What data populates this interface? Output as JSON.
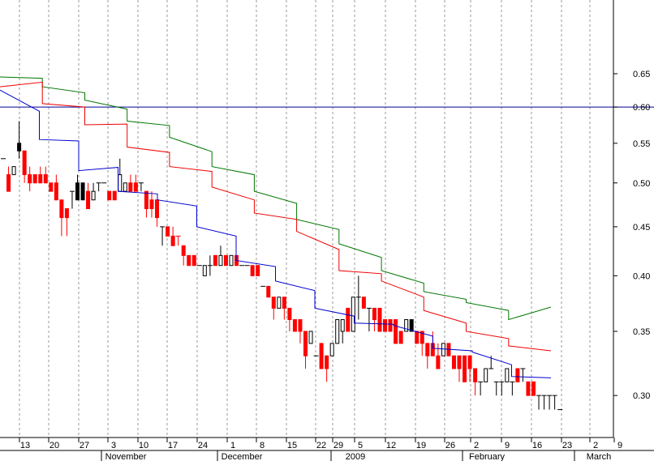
{
  "chart_data": {
    "type": "candlestick",
    "y_scale": "log",
    "ylim": [
      0.27,
      0.68
    ],
    "y_ticks": [
      "0.30",
      "0.35",
      "0.40",
      "0.45",
      "0.50",
      "0.55",
      "0.60",
      "0.65"
    ],
    "x_day_labels": [
      "13",
      "20",
      "27",
      "3",
      "10",
      "17",
      "24",
      "1",
      "8",
      "15",
      "22",
      "29",
      "5",
      "12",
      "19",
      "26",
      "2",
      "9",
      "16",
      "23",
      "2",
      "9"
    ],
    "month_labels": [
      "November",
      "December",
      "2009",
      "February",
      "March"
    ],
    "horizontal_line": 0.6,
    "colors": {
      "up": "#ffffff",
      "down": "#ff0000",
      "highlight": "#000000",
      "ma_short": "#0000cc",
      "ma_mid": "#ee0000",
      "ma_long": "#007700",
      "hline": "#000099",
      "grid": "#999999"
    },
    "candles": [
      [
        0.53,
        0.53,
        0.53,
        0.53,
        "flat"
      ],
      [
        0.51,
        0.52,
        0.49,
        0.49,
        "down"
      ],
      [
        0.51,
        0.52,
        0.51,
        0.52,
        "up"
      ],
      [
        0.55,
        0.58,
        0.53,
        0.54,
        "black"
      ],
      [
        0.54,
        0.54,
        0.5,
        0.51,
        "down"
      ],
      [
        0.51,
        0.52,
        0.49,
        0.5,
        "down"
      ],
      [
        0.51,
        0.51,
        0.5,
        0.5,
        "down"
      ],
      [
        0.51,
        0.52,
        0.5,
        0.5,
        "down"
      ],
      [
        0.51,
        0.52,
        0.5,
        0.5,
        "down"
      ],
      [
        0.5,
        0.5,
        0.49,
        0.49,
        "down"
      ],
      [
        0.5,
        0.51,
        0.48,
        0.48,
        "down"
      ],
      [
        0.48,
        0.48,
        0.44,
        0.46,
        "down"
      ],
      [
        0.47,
        0.47,
        0.44,
        0.46,
        "down"
      ],
      [
        0.49,
        0.49,
        0.47,
        0.49,
        "flat"
      ],
      [
        0.5,
        0.51,
        0.48,
        0.48,
        "black"
      ],
      [
        0.5,
        0.5,
        0.48,
        0.48,
        "black"
      ],
      [
        0.49,
        0.5,
        0.47,
        0.47,
        "down"
      ],
      [
        0.48,
        0.5,
        0.48,
        0.49,
        "up"
      ],
      [
        0.5,
        0.5,
        0.49,
        0.5,
        "up"
      ],
      [
        0.5,
        0.5,
        0.5,
        0.5,
        "flat"
      ],
      [
        0.49,
        0.49,
        0.48,
        0.48,
        "down"
      ],
      [
        0.49,
        0.49,
        0.48,
        0.48,
        "down"
      ],
      [
        0.49,
        0.53,
        0.49,
        0.51,
        "up"
      ],
      [
        0.49,
        0.5,
        0.49,
        0.5,
        "up"
      ],
      [
        0.5,
        0.51,
        0.49,
        0.49,
        "down"
      ],
      [
        0.5,
        0.51,
        0.49,
        0.49,
        "down"
      ],
      [
        0.5,
        0.5,
        0.49,
        0.49,
        "flat"
      ],
      [
        0.49,
        0.49,
        0.46,
        0.47,
        "down"
      ],
      [
        0.48,
        0.49,
        0.46,
        0.47,
        "down"
      ],
      [
        0.48,
        0.48,
        0.45,
        0.46,
        "down"
      ],
      [
        0.45,
        0.45,
        0.43,
        0.44,
        "flat"
      ],
      [
        0.45,
        0.45,
        0.44,
        0.44,
        "down"
      ],
      [
        0.44,
        0.45,
        0.43,
        0.43,
        "down"
      ],
      [
        0.44,
        0.44,
        0.43,
        0.44,
        "down"
      ],
      [
        0.43,
        0.43,
        0.41,
        0.42,
        "down"
      ],
      [
        0.42,
        0.42,
        0.41,
        0.41,
        "down"
      ],
      [
        0.42,
        0.42,
        0.41,
        0.41,
        "down"
      ],
      [
        0.41,
        0.41,
        0.41,
        0.41,
        "flat"
      ],
      [
        0.4,
        0.41,
        0.4,
        0.41,
        "up"
      ],
      [
        0.41,
        0.42,
        0.4,
        0.41,
        "up"
      ],
      [
        0.42,
        0.42,
        0.41,
        0.41,
        "down"
      ],
      [
        0.41,
        0.43,
        0.41,
        0.42,
        "up"
      ],
      [
        0.42,
        0.42,
        0.41,
        0.41,
        "down"
      ],
      [
        0.41,
        0.42,
        0.41,
        0.42,
        "up"
      ],
      [
        0.42,
        0.42,
        0.41,
        0.41,
        "down"
      ],
      [
        0.41,
        0.41,
        0.41,
        0.41,
        "flat"
      ],
      [
        0.41,
        0.41,
        0.41,
        0.41,
        "flat"
      ],
      [
        0.41,
        0.41,
        0.4,
        0.4,
        "down"
      ],
      [
        0.41,
        0.41,
        0.4,
        0.4,
        "down"
      ],
      [
        0.39,
        0.39,
        0.39,
        0.39,
        "flat"
      ],
      [
        0.39,
        0.39,
        0.38,
        0.38,
        "down"
      ],
      [
        0.38,
        0.38,
        0.36,
        0.37,
        "down"
      ],
      [
        0.37,
        0.38,
        0.37,
        0.38,
        "up"
      ],
      [
        0.38,
        0.38,
        0.36,
        0.37,
        "down"
      ],
      [
        0.37,
        0.37,
        0.35,
        0.36,
        "down"
      ],
      [
        0.36,
        0.36,
        0.35,
        0.35,
        "down"
      ],
      [
        0.36,
        0.36,
        0.34,
        0.35,
        "down"
      ],
      [
        0.35,
        0.35,
        0.32,
        0.33,
        "down"
      ],
      [
        0.34,
        0.35,
        0.34,
        0.35,
        "up"
      ],
      [
        0.33,
        0.33,
        0.33,
        0.33,
        "flat"
      ],
      [
        0.34,
        0.34,
        0.32,
        0.32,
        "down"
      ],
      [
        0.33,
        0.33,
        0.31,
        0.32,
        "down"
      ],
      [
        0.33,
        0.34,
        0.33,
        0.34,
        "up"
      ],
      [
        0.34,
        0.36,
        0.34,
        0.36,
        "up"
      ],
      [
        0.35,
        0.36,
        0.34,
        0.36,
        "up"
      ],
      [
        0.37,
        0.37,
        0.35,
        0.35,
        "down"
      ],
      [
        0.35,
        0.38,
        0.35,
        0.38,
        "up"
      ],
      [
        0.38,
        0.4,
        0.36,
        0.38,
        "up"
      ],
      [
        0.38,
        0.38,
        0.37,
        0.37,
        "down"
      ],
      [
        0.37,
        0.37,
        0.35,
        0.37,
        "up"
      ],
      [
        0.37,
        0.37,
        0.35,
        0.36,
        "down"
      ],
      [
        0.37,
        0.37,
        0.35,
        0.35,
        "down"
      ],
      [
        0.36,
        0.36,
        0.35,
        0.35,
        "down"
      ],
      [
        0.36,
        0.36,
        0.35,
        0.35,
        "down"
      ],
      [
        0.36,
        0.36,
        0.34,
        0.34,
        "down"
      ],
      [
        0.35,
        0.35,
        0.34,
        0.34,
        "down"
      ],
      [
        0.35,
        0.36,
        0.35,
        0.36,
        "up"
      ],
      [
        0.36,
        0.36,
        0.35,
        0.35,
        "black"
      ],
      [
        0.35,
        0.35,
        0.34,
        0.34,
        "down"
      ],
      [
        0.35,
        0.35,
        0.33,
        0.34,
        "down"
      ],
      [
        0.34,
        0.34,
        0.32,
        0.33,
        "down"
      ],
      [
        0.34,
        0.35,
        0.33,
        0.33,
        "down"
      ],
      [
        0.33,
        0.34,
        0.32,
        0.32,
        "down"
      ],
      [
        0.33,
        0.34,
        0.33,
        0.34,
        "up"
      ],
      [
        0.34,
        0.34,
        0.33,
        0.33,
        "down"
      ],
      [
        0.33,
        0.33,
        0.32,
        0.32,
        "down"
      ],
      [
        0.33,
        0.33,
        0.31,
        0.32,
        "down"
      ],
      [
        0.33,
        0.33,
        0.31,
        0.31,
        "down"
      ],
      [
        0.33,
        0.33,
        0.31,
        0.32,
        "down"
      ],
      [
        0.32,
        0.32,
        0.3,
        0.31,
        "down"
      ],
      [
        0.31,
        0.31,
        0.3,
        0.31,
        "up"
      ],
      [
        0.31,
        0.32,
        0.31,
        0.32,
        "up"
      ],
      [
        0.32,
        0.33,
        0.32,
        0.32,
        "flat"
      ],
      [
        0.31,
        0.31,
        0.3,
        0.31,
        "flat"
      ],
      [
        0.31,
        0.31,
        0.3,
        0.31,
        "flat"
      ],
      [
        0.31,
        0.32,
        0.31,
        0.32,
        "up"
      ],
      [
        0.31,
        0.31,
        0.3,
        0.31,
        "flat"
      ],
      [
        0.32,
        0.32,
        0.31,
        0.31,
        "down"
      ],
      [
        0.32,
        0.32,
        0.31,
        0.32,
        "up"
      ],
      [
        0.31,
        0.31,
        0.3,
        0.3,
        "down"
      ],
      [
        0.31,
        0.31,
        0.3,
        0.3,
        "down"
      ],
      [
        0.3,
        0.3,
        0.29,
        0.3,
        "flat"
      ],
      [
        0.3,
        0.3,
        0.29,
        0.3,
        "flat"
      ],
      [
        0.3,
        0.3,
        0.29,
        0.3,
        "flat"
      ],
      [
        0.3,
        0.3,
        0.29,
        0.3,
        "flat"
      ],
      [
        0.29,
        0.29,
        0.29,
        0.29,
        "flat"
      ]
    ],
    "ma_short": [
      [
        0.625,
        0.594
      ],
      [
        0.555,
        0.553
      ],
      [
        0.515,
        0.519
      ],
      [
        0.49,
        0.487
      ],
      [
        0.48,
        0.473
      ],
      [
        0.45,
        0.44
      ],
      [
        0.415,
        0.409
      ],
      [
        0.395,
        0.386
      ],
      [
        0.37,
        0.363
      ],
      [
        0.357,
        0.356
      ],
      [
        0.355,
        0.346
      ],
      [
        0.336,
        0.334
      ],
      [
        0.333,
        0.323
      ],
      [
        0.314,
        0.313
      ]
    ],
    "ma_mid": [
      [
        0.63,
        0.637
      ],
      [
        0.605,
        0.6
      ],
      [
        0.575,
        0.576
      ],
      [
        0.545,
        0.538
      ],
      [
        0.52,
        0.514
      ],
      [
        0.495,
        0.48
      ],
      [
        0.465,
        0.458
      ],
      [
        0.445,
        0.426
      ],
      [
        0.405,
        0.402
      ],
      [
        0.395,
        0.38
      ],
      [
        0.368,
        0.357
      ],
      [
        0.35,
        0.344
      ],
      [
        0.338,
        0.334
      ]
    ],
    "ma_long": [
      [
        0.645,
        0.643
      ],
      [
        0.63,
        0.621
      ],
      [
        0.61,
        0.597
      ],
      [
        0.58,
        0.574
      ],
      [
        0.558,
        0.539
      ],
      [
        0.52,
        0.51
      ],
      [
        0.49,
        0.476
      ],
      [
        0.458,
        0.447
      ],
      [
        0.432,
        0.418
      ],
      [
        0.405,
        0.393
      ],
      [
        0.385,
        0.378
      ],
      [
        0.375,
        0.368
      ],
      [
        0.36,
        0.371
      ]
    ]
  }
}
